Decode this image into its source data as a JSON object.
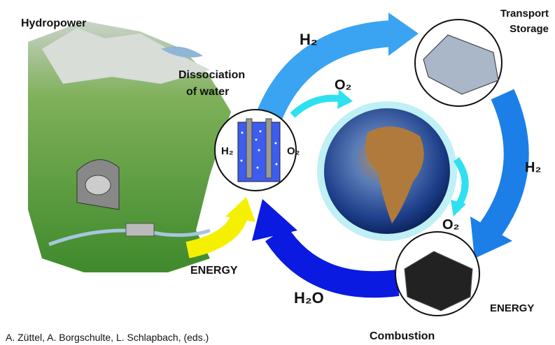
{
  "labels": {
    "hydropower": "Hydropower",
    "dissociation": [
      "Dissociation",
      "of water"
    ],
    "transport_storage": [
      "Transport",
      "Storage"
    ],
    "h2_top": "H₂",
    "o2_top": "O₂",
    "h2_right": "H₂",
    "o2_right": "O₂",
    "energy_left": "ENERGY",
    "energy_right": "ENERGY",
    "h2o": "H₂O",
    "combustion": "Combustion",
    "electrolyzer_h2": "H₂",
    "electrolyzer_o2": "O₂"
  },
  "citation": "A. Züttel, A. Borgschulte, L. Schlapbach, (eds.)"
}
